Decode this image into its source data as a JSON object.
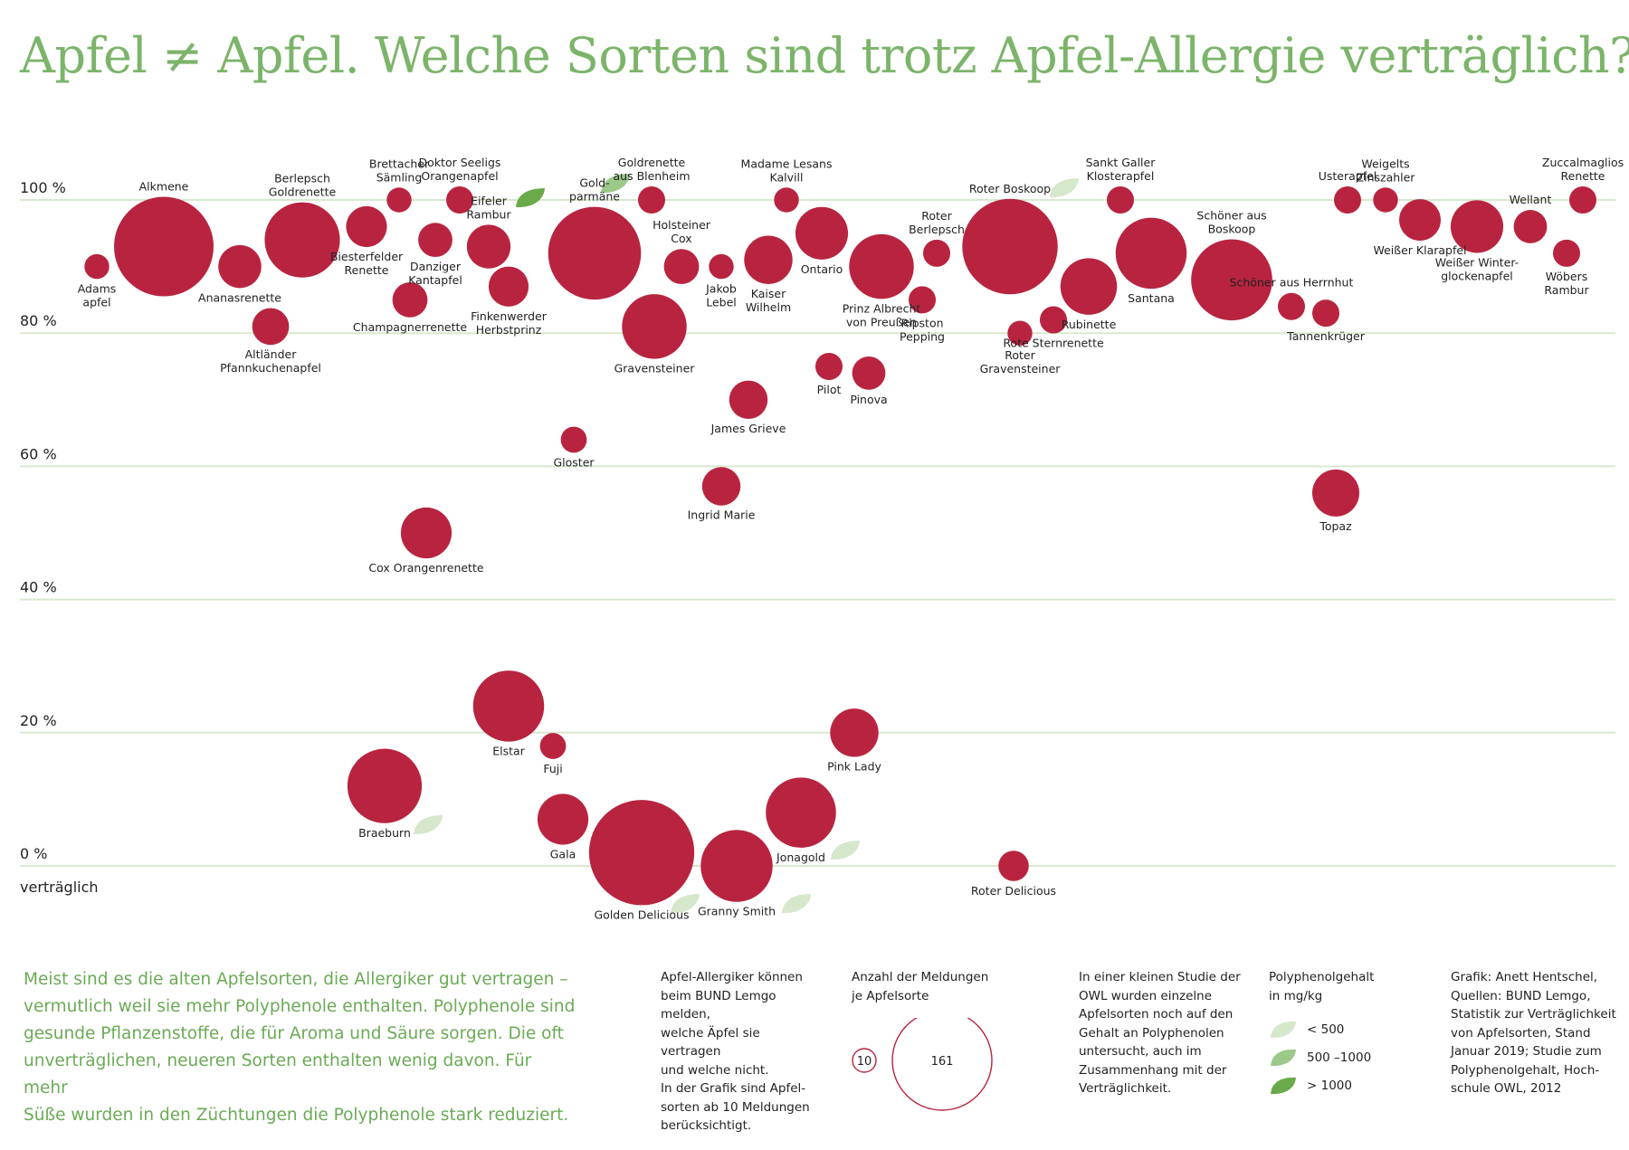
{
  "title": "Apfel ≠ Apfel. Welche Sorten sind trotz Apfel-Allergie verträglich?",
  "colors": {
    "title": "#7cb46a",
    "bubble": "#b8243f",
    "grid": "#d9e8cf",
    "leaf_low": "#d6e8cc",
    "leaf_mid": "#9bc98a",
    "leaf_high": "#6aaa4a"
  },
  "chart_data": {
    "type": "scatter",
    "title": "Apfel ≠ Apfel. Welche Sorten sind trotz Apfel-Allergie verträglich?",
    "ylabel": "verträglich",
    "ylim": [
      0,
      100
    ],
    "yticks": [
      "0 %",
      "20 %",
      "40 %",
      "60 %",
      "80 %",
      "100 %"
    ],
    "size_meaning": "Anzahl der Meldungen je Apfelsorte",
    "points": [
      {
        "label": "Adams\napfel",
        "y": 90,
        "count": 10,
        "lp": "below"
      },
      {
        "label": "Alkmene",
        "y": 93,
        "count": 161,
        "lp": "above"
      },
      {
        "label": "Ananasrenette",
        "y": 90,
        "count": 30,
        "lp": "below"
      },
      {
        "label": "Altländer\nPfannkuchenapfel",
        "y": 81,
        "count": 22,
        "lp": "below"
      },
      {
        "label": "Berlepsch\nGoldrenette",
        "y": 94,
        "count": 92,
        "lp": "above"
      },
      {
        "label": "Biesterfelder\nRenette",
        "y": 96,
        "count": 27,
        "lp": "below"
      },
      {
        "label": "Brettacher\nSämling",
        "y": 100,
        "count": 10,
        "lp": "above"
      },
      {
        "label": "Champagnerrenette",
        "y": 85,
        "count": 20,
        "lp": "below"
      },
      {
        "label": "Cox Orangenrenette",
        "y": 50,
        "count": 42,
        "lp": "below"
      },
      {
        "label": "Braeburn",
        "y": 12,
        "count": 90,
        "lp": "below",
        "poly": "low"
      },
      {
        "label": "Danziger\nKantapfel",
        "y": 94,
        "count": 19,
        "lp": "below"
      },
      {
        "label": "Doktor Seeligs\nOrangenapfel",
        "y": 100,
        "count": 12,
        "lp": "above"
      },
      {
        "label": "Eifeler\nRambur",
        "y": 93,
        "count": 31,
        "lp": "above",
        "poly": "high"
      },
      {
        "label": "Finkenwerder\nHerbstprinz",
        "y": 87,
        "count": 26,
        "lp": "below"
      },
      {
        "label": "Elstar",
        "y": 24,
        "count": 82,
        "lp": "below"
      },
      {
        "label": "Fuji",
        "y": 18,
        "count": 11,
        "lp": "below"
      },
      {
        "label": "Gala",
        "y": 7,
        "count": 42,
        "lp": "below"
      },
      {
        "label": "Gloster",
        "y": 64,
        "count": 11,
        "lp": "below"
      },
      {
        "label": "Gold-\nparmäne",
        "y": 92,
        "count": 140,
        "lp": "above",
        "poly": "mid"
      },
      {
        "label": "Golden Delicious",
        "y": 2,
        "count": 180,
        "lp": "below",
        "poly": "low"
      },
      {
        "label": "Goldrenette\naus Blenheim",
        "y": 100,
        "count": 12,
        "lp": "above"
      },
      {
        "label": "Gravensteiner",
        "y": 81,
        "count": 68,
        "lp": "below"
      },
      {
        "label": "Holsteiner\nCox",
        "y": 90,
        "count": 20,
        "lp": "above"
      },
      {
        "label": "Granny Smith",
        "y": 0,
        "count": 84,
        "lp": "below",
        "poly": "low"
      },
      {
        "label": "Jakob\nLebel",
        "y": 90,
        "count": 10,
        "lp": "below"
      },
      {
        "label": "James Grieve",
        "y": 70,
        "count": 24,
        "lp": "below"
      },
      {
        "label": "Ingrid Marie",
        "y": 57,
        "count": 24,
        "lp": "below"
      },
      {
        "label": "Kaiser\nWilhelm",
        "y": 91,
        "count": 38,
        "lp": "below"
      },
      {
        "label": "Madame Lesans\nKalvill",
        "y": 100,
        "count": 10,
        "lp": "above"
      },
      {
        "label": "Ontario",
        "y": 95,
        "count": 45,
        "lp": "below"
      },
      {
        "label": "Pilot",
        "y": 75,
        "count": 12,
        "lp": "below"
      },
      {
        "label": "Pinova",
        "y": 74,
        "count": 18,
        "lp": "below"
      },
      {
        "label": "Pink Lady",
        "y": 20,
        "count": 38,
        "lp": "below"
      },
      {
        "label": "Jonagold",
        "y": 8,
        "count": 80,
        "lp": "below",
        "poly": "low"
      },
      {
        "label": "Prinz Albrecht\nvon Preußen",
        "y": 90,
        "count": 68,
        "lp": "below"
      },
      {
        "label": "Roter\nBerlepsch",
        "y": 92,
        "count": 12,
        "lp": "above"
      },
      {
        "label": "Ripston\nPepping",
        "y": 85,
        "count": 12,
        "lp": "below"
      },
      {
        "label": "Roter Boskoop",
        "y": 93,
        "count": 148,
        "lp": "above",
        "poly": "low"
      },
      {
        "label": "Roter\nGravensteiner",
        "y": 80,
        "count": 10,
        "lp": "below"
      },
      {
        "label": "Roter Delicious",
        "y": 0,
        "count": 15,
        "lp": "below"
      },
      {
        "label": "Sankt Galler\nKlosterapfel",
        "y": 100,
        "count": 12,
        "lp": "above"
      },
      {
        "label": "Rubinette",
        "y": 87,
        "count": 52,
        "lp": "below"
      },
      {
        "label": "Rote Sternrenette",
        "y": 82,
        "count": 12,
        "lp": "below"
      },
      {
        "label": "Santana",
        "y": 92,
        "count": 82,
        "lp": "below"
      },
      {
        "label": "Schöner aus\nBoskoop",
        "y": 88,
        "count": 107,
        "lp": "above"
      },
      {
        "label": "Schöner aus Herrnhut",
        "y": 84,
        "count": 12,
        "lp": "above"
      },
      {
        "label": "Tannenkrüger",
        "y": 83,
        "count": 12,
        "lp": "below"
      },
      {
        "label": "Topaz",
        "y": 56,
        "count": 36,
        "lp": "below"
      },
      {
        "label": "Usterapfel",
        "y": 100,
        "count": 12,
        "lp": "above"
      },
      {
        "label": "Weigelts\nZinszahler",
        "y": 100,
        "count": 10,
        "lp": "above"
      },
      {
        "label": "Weißer Klarapfel",
        "y": 97,
        "count": 28,
        "lp": "below"
      },
      {
        "label": "Weißer Winter-\nglockenapfel",
        "y": 96,
        "count": 45,
        "lp": "below"
      },
      {
        "label": "Wellant",
        "y": 96,
        "count": 18,
        "lp": "above"
      },
      {
        "label": "Wöbers\nRambur",
        "y": 92,
        "count": 12,
        "lp": "below"
      },
      {
        "label": "Zuccalmaglios\nRenette",
        "y": 100,
        "count": 12,
        "lp": "above"
      }
    ]
  },
  "intro": [
    "Meist sind es die alten Apfelsorten, die Allergiker gut vertragen –",
    "vermutlich weil sie mehr Polyphenole enthalten. Polyphenole sind",
    "gesunde Pflanzenstoffe, die für Aroma und Säure sorgen. Die oft",
    "unverträglichen, neueren Sorten enthalten wenig davon. Für mehr",
    "Süße wurden in den Züchtungen die Polyphenole stark reduziert."
  ],
  "bund_note": [
    "Apfel-Allergiker können",
    "beim BUND Lemgo melden,",
    "welche Äpfel sie vertragen",
    "und welche nicht.",
    "In der Grafik sind Apfel-",
    "sorten ab 10 Meldungen",
    "berücksichtigt."
  ],
  "size_legend": {
    "heading": [
      "Anzahl der Meldungen",
      "je Apfelsorte"
    ],
    "small": "10",
    "large": "161"
  },
  "study_note": [
    "In einer kleinen Studie der",
    "OWL wurden einzelne",
    "Apfelsorten noch auf den",
    "Gehalt an Polyphenolen",
    "untersucht, auch im",
    "Zusammenhang mit der",
    "Verträglichkeit."
  ],
  "poly_legend": {
    "heading": [
      "Polyphenolgehalt",
      "in mg/kg"
    ],
    "items": [
      {
        "level": "low",
        "label": "< 500"
      },
      {
        "level": "mid",
        "label": "500 –1000"
      },
      {
        "level": "high",
        "label": "> 1000"
      }
    ]
  },
  "credits": [
    "Grafik: Anett Hentschel,",
    "Quellen: BUND Lemgo,",
    "Statistik zur Verträglichkeit",
    "von Apfelsorten, Stand",
    "Januar 2019; Studie zum",
    "Polyphenolgehalt, Hoch-",
    "schule OWL, 2012"
  ]
}
